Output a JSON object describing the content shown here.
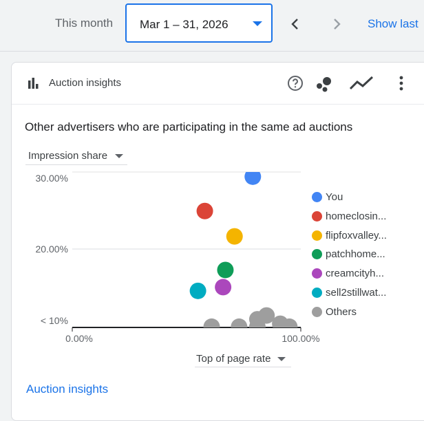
{
  "toolbar": {
    "period_label": "This month",
    "date_range": "Mar 1 – 31, 2026",
    "show_last": "Show last"
  },
  "card": {
    "title": "Auction insights",
    "subtitle": "Other advertisers who are participating in the same ad auctions",
    "metric_dropdown": "Impression share",
    "xaxis_dropdown": "Top of page rate",
    "footer_link": "Auction insights"
  },
  "chart_data": {
    "type": "scatter",
    "xlabel": "Top of page rate",
    "ylabel": "Impression share",
    "x_ticks": [
      "0.00%",
      "100.00%"
    ],
    "y_ticks": [
      "< 10%",
      "20.00%",
      "30.00%"
    ],
    "xlim": [
      0,
      100
    ],
    "ylim": [
      10,
      30
    ],
    "grid": true,
    "legend_position": "right",
    "series": [
      {
        "name": "You",
        "color": "#4285f4",
        "points": [
          [
            79,
            30.2
          ]
        ]
      },
      {
        "name": "homeclosin...",
        "color": "#db4437",
        "points": [
          [
            58,
            25.6
          ]
        ]
      },
      {
        "name": "flipfoxvalley...",
        "color": "#f4b400",
        "points": [
          [
            71,
            22.2
          ]
        ]
      },
      {
        "name": "patchhome...",
        "color": "#0f9d58",
        "points": [
          [
            67,
            17.7
          ]
        ]
      },
      {
        "name": "creamcityh...",
        "color": "#ab47bc",
        "points": [
          [
            66,
            15.4
          ]
        ]
      },
      {
        "name": "sell2stillwat...",
        "color": "#00acc1",
        "points": [
          [
            55,
            14.9
          ]
        ]
      },
      {
        "name": "Others",
        "color": "#9e9e9e",
        "points": [
          [
            61,
            10.1
          ],
          [
            73,
            10.1
          ],
          [
            81,
            11.1
          ],
          [
            85,
            11.6
          ],
          [
            81,
            10.1
          ],
          [
            91,
            10.5
          ],
          [
            95,
            10.1
          ]
        ]
      }
    ]
  }
}
